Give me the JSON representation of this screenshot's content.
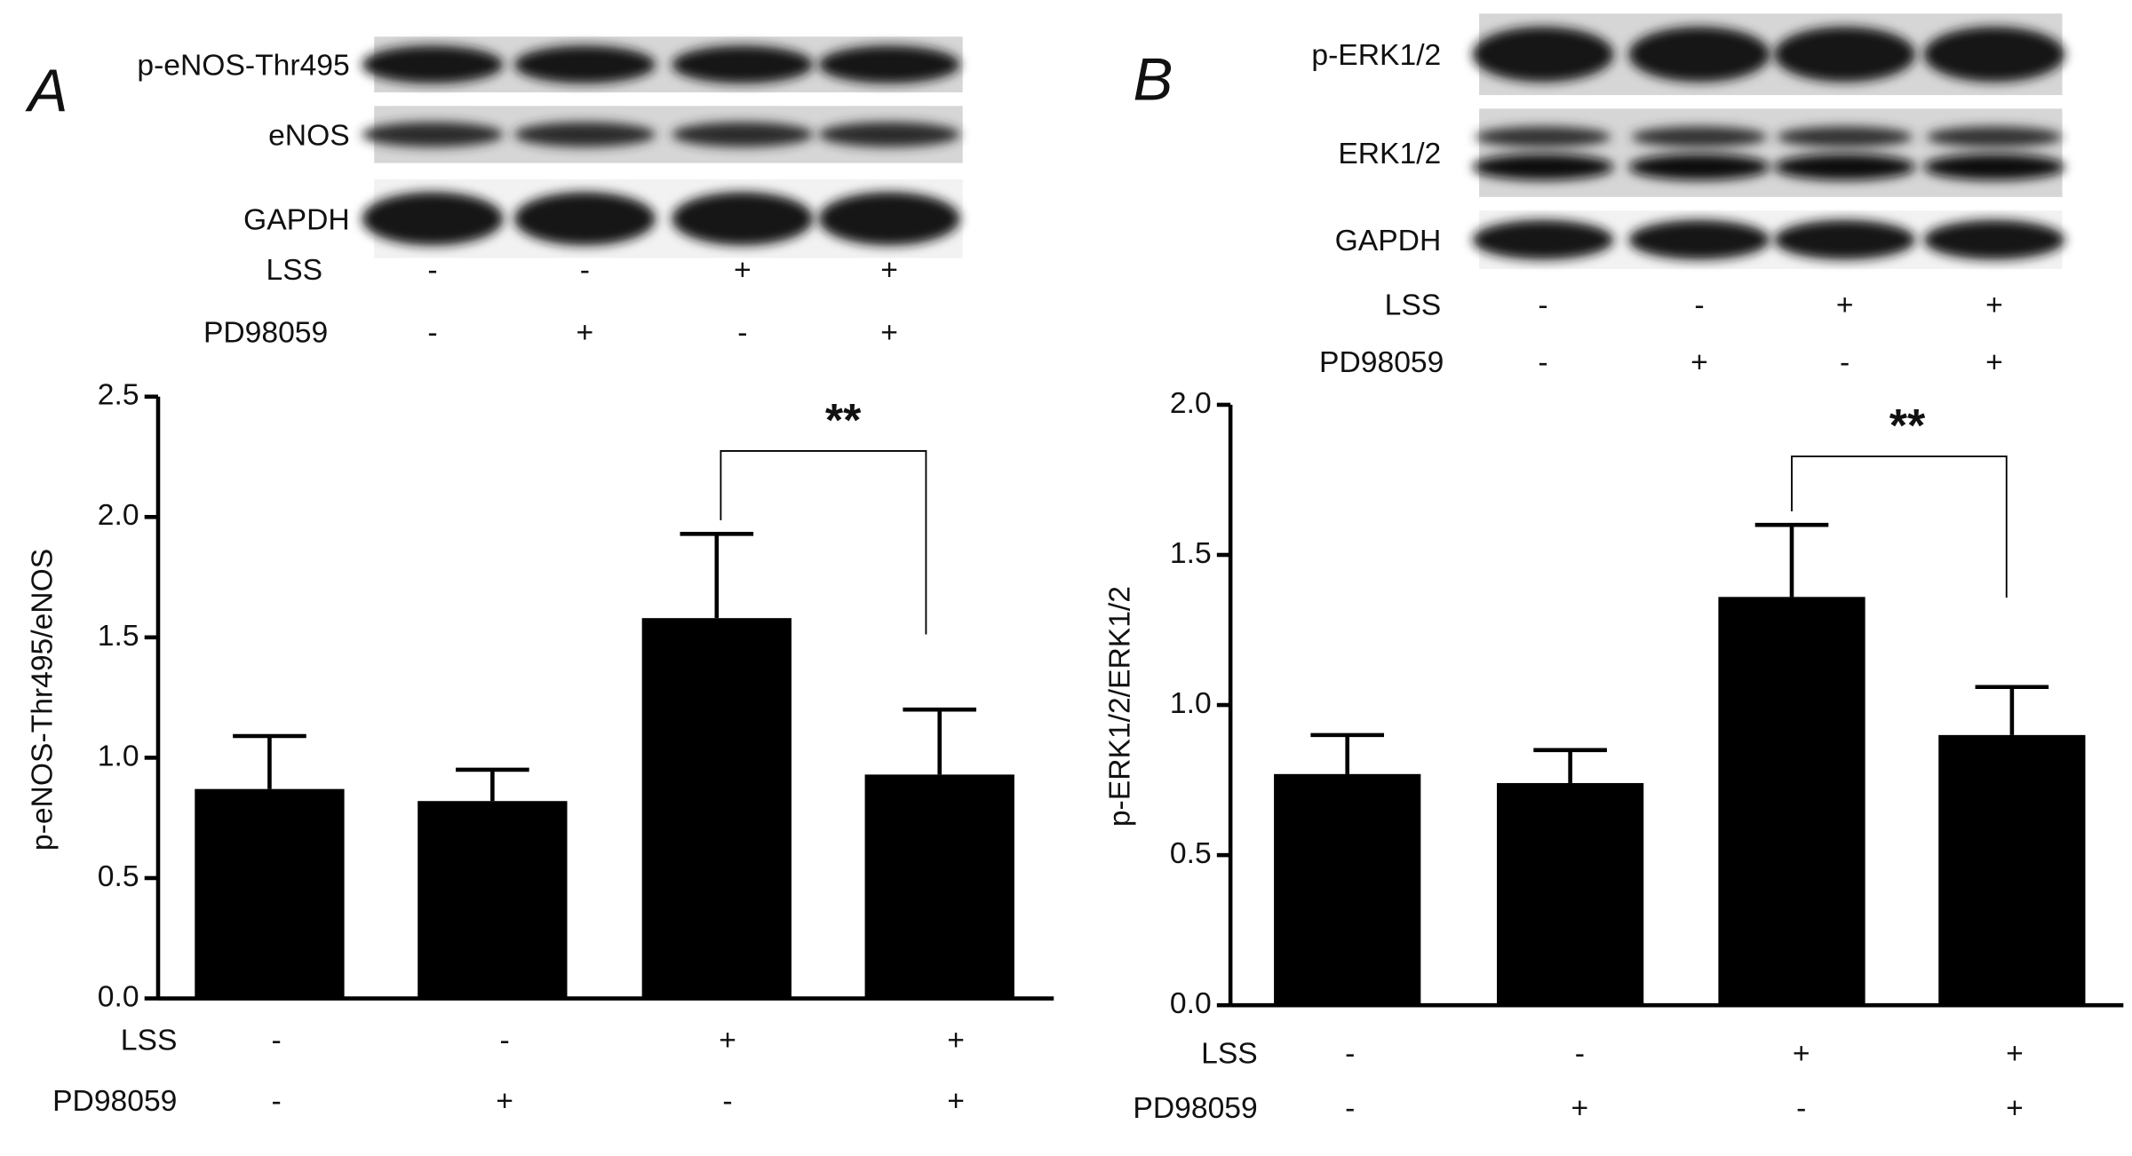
{
  "chart_data": [
    {
      "type": "bar",
      "panel_label": "A",
      "ylabel": "p-eNOS-Thr495/eNOS",
      "blot_rows": [
        "p-eNOS-Thr495",
        "eNOS",
        "GAPDH"
      ],
      "condition_names": [
        "LSS",
        "PD98059"
      ],
      "conditions": [
        [
          "-",
          "-",
          "+",
          "+"
        ],
        [
          "-",
          "+",
          "-",
          "+"
        ]
      ],
      "values": [
        0.87,
        0.82,
        1.58,
        0.93
      ],
      "errors": [
        0.22,
        0.13,
        0.35,
        0.27
      ],
      "color": "#000000",
      "significance": "**",
      "ylim": [
        0,
        2.5
      ],
      "yticks": [
        {
          "value": 0,
          "label": "0.0"
        },
        0.5,
        {
          "value": 1,
          "label": "1.0"
        },
        1.5,
        {
          "value": 2,
          "label": "2.0"
        },
        2.5
      ]
    },
    {
      "type": "bar",
      "panel_label": "B",
      "ylabel": "p-ERK1/2/ERK1/2",
      "blot_rows": [
        "p-ERK1/2",
        "ERK1/2",
        "GAPDH"
      ],
      "condition_names": [
        "LSS",
        "PD98059"
      ],
      "conditions": [
        [
          "-",
          "-",
          "+",
          "+"
        ],
        [
          "-",
          "+",
          "-",
          "+"
        ]
      ],
      "values": [
        0.77,
        0.74,
        1.36,
        0.9
      ],
      "errors": [
        0.13,
        0.11,
        0.24,
        0.16
      ],
      "color": "#000000",
      "significance": "**",
      "ylim": [
        0,
        2.0
      ],
      "yticks": [
        {
          "value": 0,
          "label": "0.0"
        },
        0.5,
        {
          "value": 1,
          "label": "1.0"
        },
        1.5,
        {
          "value": 2,
          "label": "2.0"
        }
      ]
    }
  ]
}
